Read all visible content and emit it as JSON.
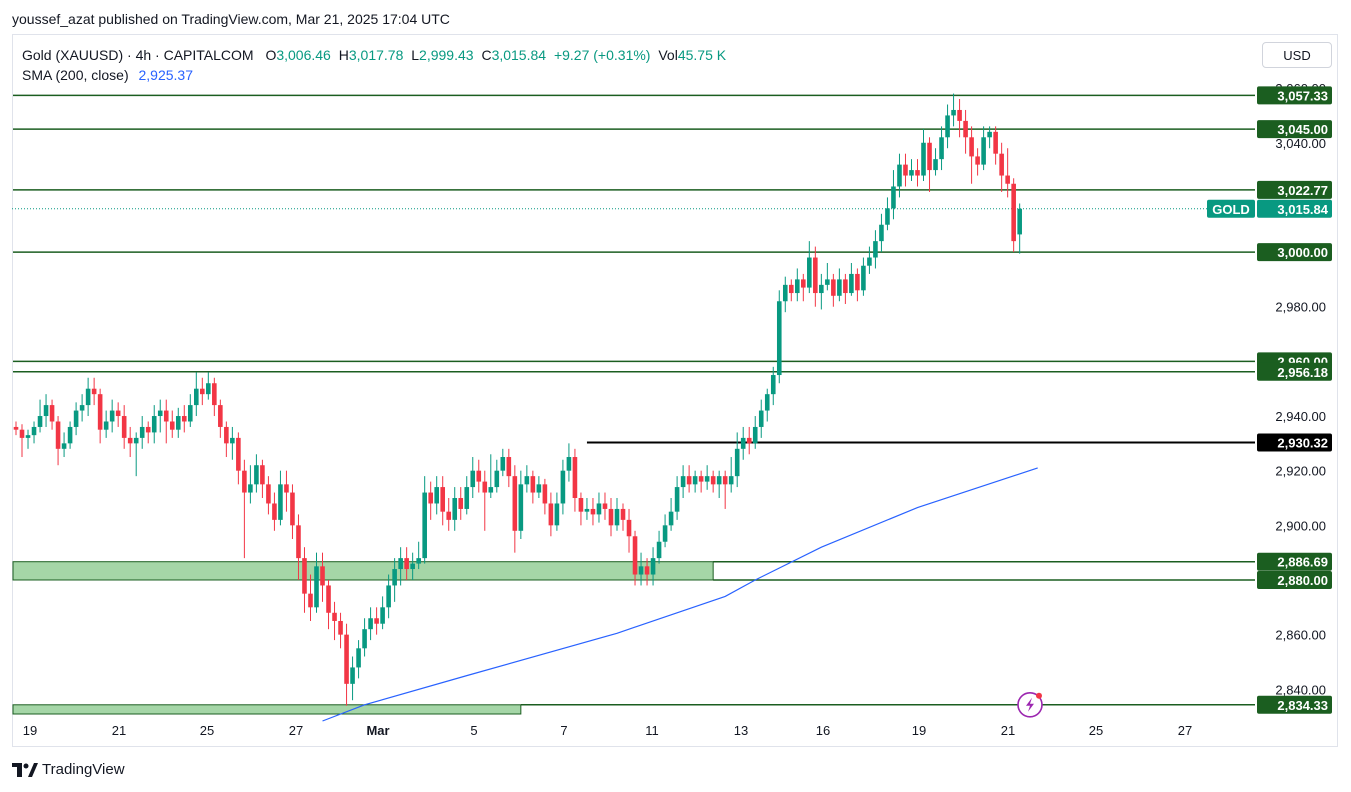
{
  "caption": "youssef_azat published on TradingView.com, Mar 21, 2025 17:04 UTC",
  "header": {
    "symbol": "Gold (XAUUSD) · 4h · CAPITALCOM",
    "o_label": "O",
    "o_value": "3,006.46",
    "h_label": "H",
    "h_value": "3,017.78",
    "l_label": "L",
    "l_value": "2,999.43",
    "c_label": "C",
    "c_value": "3,015.84",
    "change": "+9.27 (+0.31%)",
    "vol_label": "Vol",
    "vol_value": "45.75 K",
    "sma_label": "SMA (200, close)",
    "sma_value": "2,925.37"
  },
  "currency": "USD",
  "brand": "TradingView",
  "colors": {
    "up": "#089981",
    "down": "#f23645",
    "level": "#1b5e20",
    "zone": "#a5d6a7",
    "sma": "#2962ff",
    "black": "#000000"
  },
  "chart_data": {
    "type": "candlestick",
    "ylim": [
      2828,
      3063
    ],
    "x_ticks": [
      "19",
      "21",
      "25",
      "27",
      "Mar",
      "5",
      "7",
      "11",
      "13",
      "16",
      "19",
      "21",
      "25",
      "27"
    ],
    "y_ticks": [
      "2,840.00",
      "2,860.00",
      "2,880.00",
      "2,900.00",
      "2,920.00",
      "2,940.00",
      "2,980.00",
      "3,000.00",
      "3,040.00",
      "3,060.00"
    ],
    "y_tick_values": [
      2840,
      2860,
      2880,
      2900,
      2920,
      2940,
      2980,
      3000,
      3040,
      3060
    ],
    "last_price": {
      "label": "GOLD",
      "value": 3015.84,
      "text": "3,015.84"
    },
    "levels": [
      {
        "value": 3057.33,
        "text": "3,057.33",
        "style": "green"
      },
      {
        "value": 3045.0,
        "text": "3,045.00",
        "style": "green"
      },
      {
        "value": 3022.77,
        "text": "3,022.77",
        "style": "green"
      },
      {
        "value": 3000.0,
        "text": "3,000.00",
        "style": "green"
      },
      {
        "value": 2960.0,
        "text": "2,960.00",
        "style": "green"
      },
      {
        "value": 2956.18,
        "text": "2,956.18",
        "style": "green"
      },
      {
        "value": 2930.32,
        "text": "2,930.32",
        "style": "black"
      },
      {
        "value": 2886.69,
        "text": "2,886.69",
        "style": "green"
      },
      {
        "value": 2880.0,
        "text": "2,880.00",
        "style": "green"
      },
      {
        "value": 2834.33,
        "text": "2,834.33",
        "style": "green"
      }
    ],
    "zones": [
      {
        "from_candle": 0,
        "to_candle": 116,
        "low": 2880.0,
        "high": 2886.69
      },
      {
        "from_candle": 0,
        "to_candle": 84,
        "low": 2828.0,
        "high": 2834.33
      }
    ],
    "sma": [
      [
        51,
        2828.4
      ],
      [
        58,
        2834.33
      ],
      [
        75,
        2845.0
      ],
      [
        100,
        2860.5
      ],
      [
        118,
        2874.0
      ],
      [
        123,
        2880.0
      ],
      [
        134,
        2892.0
      ],
      [
        150,
        2906.5
      ],
      [
        170,
        2921.0
      ],
      [
        169,
        2920.0
      ]
    ],
    "candles": [
      [
        2936,
        2935,
        2938,
        2933
      ],
      [
        2935,
        2932,
        2937,
        2925
      ],
      [
        2932,
        2933,
        2935,
        2928
      ],
      [
        2933,
        2936,
        2938,
        2930
      ],
      [
        2936,
        2940,
        2946,
        2934
      ],
      [
        2940,
        2944,
        2948,
        2936
      ],
      [
        2944,
        2938,
        2946,
        2935
      ],
      [
        2938,
        2928,
        2940,
        2922
      ],
      [
        2928,
        2930,
        2934,
        2925
      ],
      [
        2930,
        2936,
        2938,
        2928
      ],
      [
        2936,
        2942,
        2945,
        2933
      ],
      [
        2942,
        2944,
        2948,
        2938
      ],
      [
        2944,
        2950,
        2954,
        2940
      ],
      [
        2950,
        2948,
        2954,
        2944
      ],
      [
        2948,
        2935,
        2950,
        2930
      ],
      [
        2935,
        2938,
        2942,
        2932
      ],
      [
        2938,
        2942,
        2946,
        2934
      ],
      [
        2942,
        2940,
        2945,
        2936
      ],
      [
        2940,
        2932,
        2944,
        2928
      ],
      [
        2932,
        2930,
        2936,
        2925
      ],
      [
        2930,
        2932,
        2934,
        2918
      ],
      [
        2932,
        2936,
        2940,
        2928
      ],
      [
        2936,
        2934,
        2938,
        2930
      ],
      [
        2934,
        2940,
        2944,
        2930
      ],
      [
        2940,
        2942,
        2946,
        2934
      ],
      [
        2942,
        2938,
        2946,
        2930
      ],
      [
        2938,
        2935,
        2942,
        2932
      ],
      [
        2935,
        2940,
        2943,
        2932
      ],
      [
        2940,
        2938,
        2944,
        2934
      ],
      [
        2938,
        2944,
        2948,
        2936
      ],
      [
        2944,
        2950,
        2956,
        2940
      ],
      [
        2950,
        2948,
        2954,
        2944
      ],
      [
        2948,
        2952,
        2956,
        2946
      ],
      [
        2952,
        2944,
        2954,
        2940
      ],
      [
        2944,
        2936,
        2946,
        2932
      ],
      [
        2936,
        2930,
        2938,
        2925
      ],
      [
        2930,
        2932,
        2936,
        2924
      ],
      [
        2932,
        2920,
        2934,
        2915
      ],
      [
        2920,
        2912,
        2924,
        2888
      ],
      [
        2912,
        2915,
        2922,
        2908
      ],
      [
        2915,
        2922,
        2926,
        2912
      ],
      [
        2922,
        2915,
        2924,
        2910
      ],
      [
        2915,
        2908,
        2918,
        2904
      ],
      [
        2908,
        2902,
        2912,
        2898
      ],
      [
        2902,
        2915,
        2920,
        2900
      ],
      [
        2915,
        2912,
        2920,
        2905
      ],
      [
        2912,
        2900,
        2915,
        2895
      ],
      [
        2900,
        2888,
        2904,
        2880
      ],
      [
        2888,
        2875,
        2892,
        2868
      ],
      [
        2875,
        2870,
        2882,
        2865
      ],
      [
        2870,
        2885,
        2890,
        2868
      ],
      [
        2885,
        2878,
        2890,
        2872
      ],
      [
        2878,
        2868,
        2880,
        2862
      ],
      [
        2868,
        2865,
        2872,
        2858
      ],
      [
        2865,
        2860,
        2868,
        2855
      ],
      [
        2860,
        2842,
        2864,
        2834
      ],
      [
        2842,
        2848,
        2852,
        2836
      ],
      [
        2848,
        2855,
        2858,
        2844
      ],
      [
        2855,
        2862,
        2866,
        2852
      ],
      [
        2862,
        2866,
        2870,
        2858
      ],
      [
        2866,
        2864,
        2870,
        2860
      ],
      [
        2864,
        2870,
        2874,
        2862
      ],
      [
        2870,
        2878,
        2882,
        2866
      ],
      [
        2878,
        2884,
        2888,
        2872
      ],
      [
        2884,
        2888,
        2892,
        2878
      ],
      [
        2888,
        2884,
        2892,
        2880
      ],
      [
        2884,
        2886,
        2890,
        2880
      ],
      [
        2886,
        2888,
        2894,
        2884
      ],
      [
        2888,
        2912,
        2918,
        2886
      ],
      [
        2912,
        2908,
        2916,
        2902
      ],
      [
        2908,
        2914,
        2918,
        2904
      ],
      [
        2914,
        2905,
        2918,
        2900
      ],
      [
        2905,
        2902,
        2910,
        2898
      ],
      [
        2902,
        2910,
        2914,
        2898
      ],
      [
        2910,
        2906,
        2914,
        2902
      ],
      [
        2906,
        2914,
        2918,
        2904
      ],
      [
        2914,
        2920,
        2925,
        2910
      ],
      [
        2920,
        2916,
        2924,
        2912
      ],
      [
        2916,
        2912,
        2920,
        2898
      ],
      [
        2912,
        2914,
        2926,
        2910
      ],
      [
        2914,
        2920,
        2924,
        2912
      ],
      [
        2920,
        2925,
        2928,
        2918
      ],
      [
        2925,
        2918,
        2928,
        2914
      ],
      [
        2918,
        2898,
        2922,
        2890
      ],
      [
        2898,
        2915,
        2920,
        2895
      ],
      [
        2915,
        2918,
        2922,
        2912
      ],
      [
        2918,
        2912,
        2920,
        2908
      ],
      [
        2912,
        2915,
        2918,
        2910
      ],
      [
        2915,
        2908,
        2917,
        2904
      ],
      [
        2908,
        2900,
        2912,
        2896
      ],
      [
        2900,
        2908,
        2912,
        2898
      ],
      [
        2908,
        2920,
        2924,
        2904
      ],
      [
        2920,
        2925,
        2930,
        2916
      ],
      [
        2925,
        2910,
        2928,
        2905
      ],
      [
        2910,
        2905,
        2912,
        2900
      ],
      [
        2905,
        2906,
        2910,
        2902
      ],
      [
        2906,
        2904,
        2910,
        2900
      ],
      [
        2904,
        2908,
        2912,
        2901
      ],
      [
        2908,
        2906,
        2912,
        2902
      ],
      [
        2906,
        2900,
        2910,
        2896
      ],
      [
        2900,
        2906,
        2910,
        2898
      ],
      [
        2906,
        2902,
        2908,
        2898
      ],
      [
        2902,
        2896,
        2906,
        2890
      ],
      [
        2896,
        2882,
        2898,
        2878
      ],
      [
        2882,
        2885,
        2890,
        2878
      ],
      [
        2885,
        2882,
        2888,
        2878
      ],
      [
        2882,
        2888,
        2892,
        2878
      ],
      [
        2888,
        2894,
        2898,
        2886
      ],
      [
        2894,
        2900,
        2904,
        2892
      ],
      [
        2900,
        2905,
        2910,
        2898
      ],
      [
        2905,
        2914,
        2918,
        2902
      ],
      [
        2914,
        2918,
        2922,
        2910
      ],
      [
        2918,
        2915,
        2922,
        2912
      ],
      [
        2915,
        2918,
        2920,
        2912
      ],
      [
        2918,
        2916,
        2920,
        2912
      ],
      [
        2916,
        2918,
        2922,
        2913
      ],
      [
        2918,
        2915,
        2920,
        2912
      ],
      [
        2915,
        2918,
        2920,
        2910
      ],
      [
        2918,
        2915,
        2920,
        2906
      ],
      [
        2915,
        2918,
        2925,
        2912
      ],
      [
        2918,
        2928,
        2934,
        2914
      ],
      [
        2928,
        2932,
        2936,
        2924
      ],
      [
        2932,
        2930,
        2936,
        2926
      ],
      [
        2930,
        2936,
        2940,
        2928
      ],
      [
        2936,
        2942,
        2946,
        2932
      ],
      [
        2942,
        2948,
        2950,
        2938
      ],
      [
        2948,
        2955,
        2958,
        2944
      ],
      [
        2955,
        2982,
        2986,
        2952
      ],
      [
        2982,
        2988,
        2991,
        2978
      ],
      [
        2988,
        2985,
        2990,
        2982
      ],
      [
        2985,
        2990,
        2994,
        2982
      ],
      [
        2990,
        2987,
        2992,
        2982
      ],
      [
        2987,
        2998,
        3004,
        2985
      ],
      [
        2998,
        2985,
        3002,
        2980
      ],
      [
        2985,
        2988,
        2992,
        2979
      ],
      [
        2988,
        2990,
        2996,
        2986
      ],
      [
        2990,
        2984,
        2992,
        2980
      ],
      [
        2984,
        2990,
        2994,
        2982
      ],
      [
        2990,
        2985,
        2992,
        2981
      ],
      [
        2985,
        2992,
        2996,
        2984
      ],
      [
        2992,
        2986,
        2994,
        2982
      ],
      [
        2986,
        2995,
        2998,
        2984
      ],
      [
        2995,
        2998,
        3002,
        2992
      ],
      [
        2998,
        3004,
        3008,
        2994
      ],
      [
        3004,
        3010,
        3014,
        3000
      ],
      [
        3010,
        3016,
        3020,
        3008
      ],
      [
        3016,
        3024,
        3030,
        3012
      ],
      [
        3024,
        3032,
        3036,
        3020
      ],
      [
        3032,
        3028,
        3036,
        3024
      ],
      [
        3028,
        3030,
        3034,
        3026
      ],
      [
        3030,
        3028,
        3034,
        3024
      ],
      [
        3028,
        3040,
        3045,
        3026
      ],
      [
        3040,
        3030,
        3042,
        3022
      ],
      [
        3030,
        3034,
        3038,
        3028
      ],
      [
        3034,
        3042,
        3046,
        3030
      ],
      [
        3042,
        3050,
        3054,
        3038
      ],
      [
        3050,
        3052,
        3058,
        3046
      ],
      [
        3052,
        3048,
        3056,
        3042
      ],
      [
        3048,
        3042,
        3052,
        3036
      ],
      [
        3042,
        3035,
        3046,
        3025
      ],
      [
        3035,
        3032,
        3038,
        3028
      ],
      [
        3032,
        3042,
        3046,
        3030
      ],
      [
        3042,
        3044,
        3046,
        3038
      ],
      [
        3044,
        3036,
        3046,
        3032
      ],
      [
        3036,
        3028,
        3040,
        3022
      ],
      [
        3028,
        3025,
        3038,
        3020
      ],
      [
        3025,
        3004,
        3027,
        3000
      ],
      [
        3006.46,
        3015.84,
        3017.78,
        2999.43
      ]
    ]
  }
}
